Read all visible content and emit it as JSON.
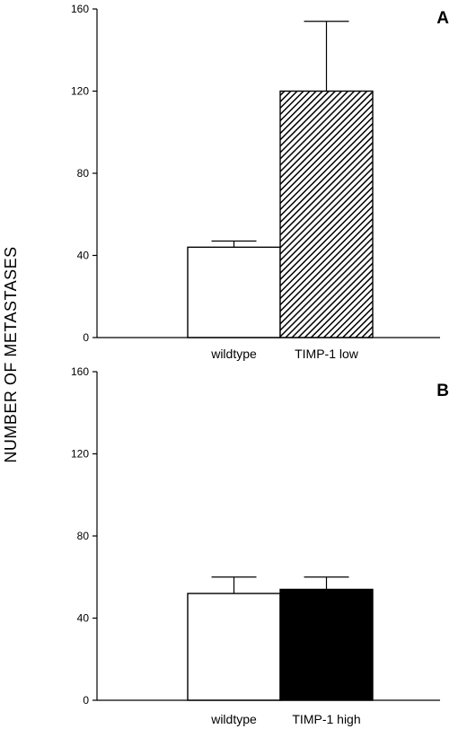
{
  "ylabel": "NUMBER OF METASTASES",
  "chart_data": [
    {
      "type": "bar",
      "panel_label": "A",
      "categories": [
        "wildtype",
        "TIMP-1 low"
      ],
      "values": [
        44,
        120
      ],
      "errors": [
        3,
        34
      ],
      "fills": [
        "white",
        "hatched"
      ],
      "ylim": [
        0,
        160
      ],
      "yticks": [
        0,
        40,
        80,
        120,
        160
      ],
      "grid": false
    },
    {
      "type": "bar",
      "panel_label": "B",
      "categories": [
        "wildtype",
        "TIMP-1 high"
      ],
      "values": [
        52,
        54
      ],
      "errors": [
        8,
        6
      ],
      "fills": [
        "white",
        "black"
      ],
      "ylim": [
        0,
        160
      ],
      "yticks": [
        0,
        40,
        80,
        120,
        160
      ],
      "grid": false
    }
  ]
}
